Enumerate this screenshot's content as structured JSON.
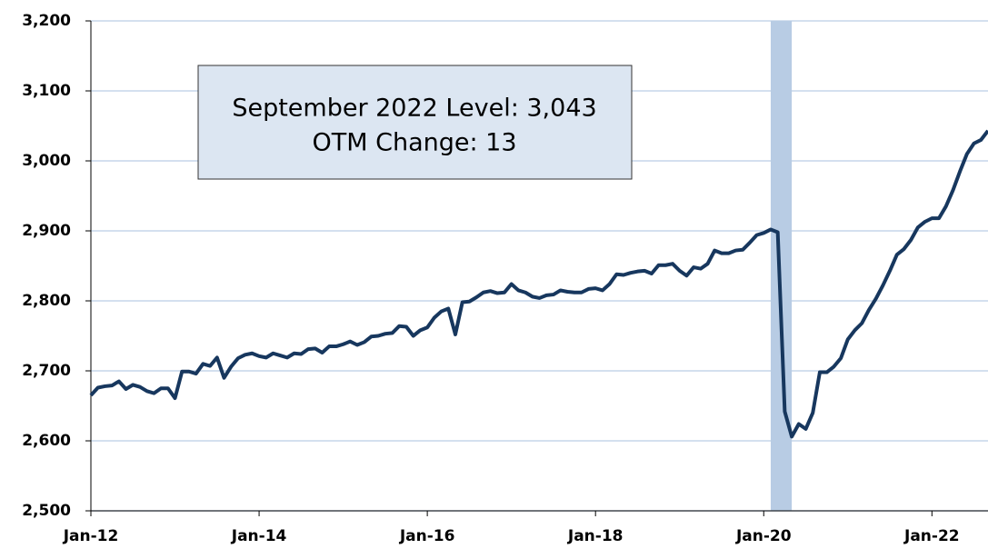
{
  "chart_data": {
    "type": "line",
    "categories": [
      "Jan-12",
      null,
      null,
      null,
      null,
      null,
      null,
      null,
      null,
      null,
      null,
      null,
      null,
      null,
      null,
      null,
      null,
      null,
      null,
      null,
      null,
      null,
      null,
      null,
      "Jan-14",
      null,
      null,
      null,
      null,
      null,
      null,
      null,
      null,
      null,
      null,
      null,
      null,
      null,
      null,
      null,
      null,
      null,
      null,
      null,
      null,
      null,
      null,
      null,
      "Jan-16",
      null,
      null,
      null,
      null,
      null,
      null,
      null,
      null,
      null,
      null,
      null,
      null,
      null,
      null,
      null,
      null,
      null,
      null,
      null,
      null,
      null,
      null,
      null,
      "Jan-18",
      null,
      null,
      null,
      null,
      null,
      null,
      null,
      null,
      null,
      null,
      null,
      null,
      null,
      null,
      null,
      null,
      null,
      null,
      null,
      null,
      null,
      null,
      null,
      "Jan-20",
      null,
      null,
      null,
      null,
      null,
      null,
      null,
      null,
      null,
      null,
      null,
      null,
      null,
      null,
      null,
      null,
      null,
      null,
      null,
      null,
      null,
      null,
      null,
      "Jan-22",
      null,
      null,
      null,
      null,
      null,
      null,
      null,
      null
    ],
    "series": [
      {
        "color": "#17375e",
        "values": [
          2665,
          2676,
          2678,
          2679,
          2685,
          2674,
          2680,
          2677,
          2671,
          2668,
          2675,
          2675,
          2661,
          2699,
          2699,
          2696,
          2710,
          2707,
          2719,
          2690,
          2706,
          2718,
          2723,
          2725,
          2721,
          2719,
          2725,
          2722,
          2719,
          2725,
          2724,
          2731,
          2732,
          2726,
          2735,
          2735,
          2738,
          2742,
          2737,
          2741,
          2749,
          2750,
          2753,
          2754,
          2764,
          2763,
          2750,
          2758,
          2762,
          2776,
          2785,
          2789,
          2752,
          2798,
          2799,
          2805,
          2812,
          2814,
          2811,
          2812,
          2824,
          2815,
          2812,
          2806,
          2804,
          2808,
          2809,
          2815,
          2813,
          2812,
          2812,
          2817,
          2818,
          2815,
          2824,
          2838,
          2837,
          2840,
          2842,
          2843,
          2839,
          2851,
          2851,
          2853,
          2843,
          2836,
          2848,
          2846,
          2853,
          2872,
          2868,
          2868,
          2872,
          2873,
          2883,
          2894,
          2897,
          2902,
          2898,
          2642,
          2606,
          2624,
          2617,
          2640,
          2698,
          2698,
          2706,
          2718,
          2745,
          2758,
          2768,
          2787,
          2803,
          2822,
          2843,
          2866,
          2874,
          2887,
          2905,
          2913,
          2918,
          2918,
          2935,
          2958,
          2985,
          3010,
          3025,
          3030,
          3043
        ]
      }
    ],
    "ylim": [
      2500,
      3200
    ],
    "yticks": [
      {
        "value": 2500,
        "label": "2,500"
      },
      {
        "value": 2600,
        "label": "2,600"
      },
      {
        "value": 2700,
        "label": "2,700"
      },
      {
        "value": 2800,
        "label": "2,800"
      },
      {
        "value": 2900,
        "label": "2,900"
      },
      {
        "value": 3000,
        "label": "3,000"
      },
      {
        "value": 3100,
        "label": "3,100"
      },
      {
        "value": 3200,
        "label": "3,200"
      }
    ],
    "grid": true,
    "recession": {
      "start": 97,
      "end": 100,
      "color": "#b8cce4"
    },
    "annotation": [
      "September 2022 Level: 3,043",
      "OTM Change: 13"
    ]
  }
}
